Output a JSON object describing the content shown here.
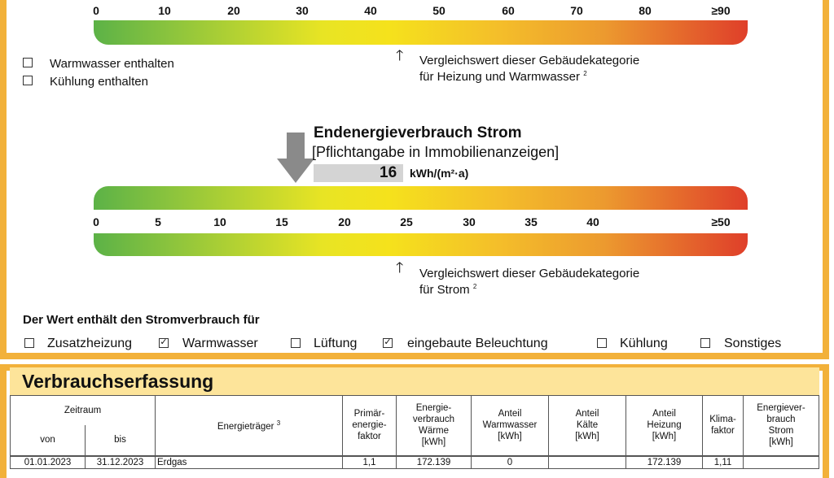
{
  "scale1": {
    "ticks": [
      "0",
      "10",
      "20",
      "30",
      "40",
      "50",
      "60",
      "70",
      "80",
      "≥90"
    ],
    "checkboxes": [
      {
        "label": "Warmwasser enthalten",
        "checked": false
      },
      {
        "label": "Kühlung enthalten",
        "checked": false
      }
    ],
    "reference_line1": "Vergleichswert dieser Gebäudekategorie",
    "reference_line2": "für Heizung und Warmwasser",
    "reference_sup": "2"
  },
  "strom": {
    "title": "Endenergieverbrauch Strom",
    "subtitle": "[Pflichtangabe in Immobilienanzeigen]",
    "value": "16",
    "unit": "kWh/(m²·a)",
    "ticks": [
      "0",
      "5",
      "10",
      "15",
      "20",
      "25",
      "30",
      "35",
      "40",
      "≥50"
    ],
    "reference_line1": "Vergleichswert dieser Gebäudekategorie",
    "reference_line2": "für Strom",
    "reference_sup": "2"
  },
  "stromverbrauch": {
    "heading": "Der Wert enthält den Stromverbrauch für",
    "items": [
      {
        "label": "Zusatzheizung",
        "checked": false
      },
      {
        "label": "Warmwasser",
        "checked": true
      },
      {
        "label": "Lüftung",
        "checked": false
      },
      {
        "label": "eingebaute Beleuchtung",
        "checked": true
      },
      {
        "label": "Kühlung",
        "checked": false
      },
      {
        "label": "Sonstiges",
        "checked": false
      }
    ]
  },
  "verbrauch": {
    "title": "Verbrauchserfassung",
    "headers": {
      "zeitraum": "Zeitraum",
      "von": "von",
      "bis": "bis",
      "traeger": "Energieträger",
      "traeger_sup": "3",
      "primaer": "Primär-\nenergie-\nfaktor",
      "waerme": "Energie-\nverbrauch\nWärme\n[kWh]",
      "ww": "Anteil\nWarmwasser\n[kWh]",
      "kaelte": "Anteil\nKälte\n[kWh]",
      "heizung": "Anteil\nHeizung\n[kWh]",
      "klima": "Klima-\nfaktor",
      "strom": "Energiever-\nbrauch\nStrom\n[kWh]"
    },
    "rows": [
      [
        "01.01.2023",
        "31.12.2023",
        "Erdgas",
        "1,1",
        "172.139",
        "0",
        "",
        "172.139",
        "1,11",
        ""
      ]
    ]
  },
  "colors": {
    "frame": "#f2b13a",
    "header_band": "#fde49a",
    "arrow": "#8a8a8a"
  }
}
